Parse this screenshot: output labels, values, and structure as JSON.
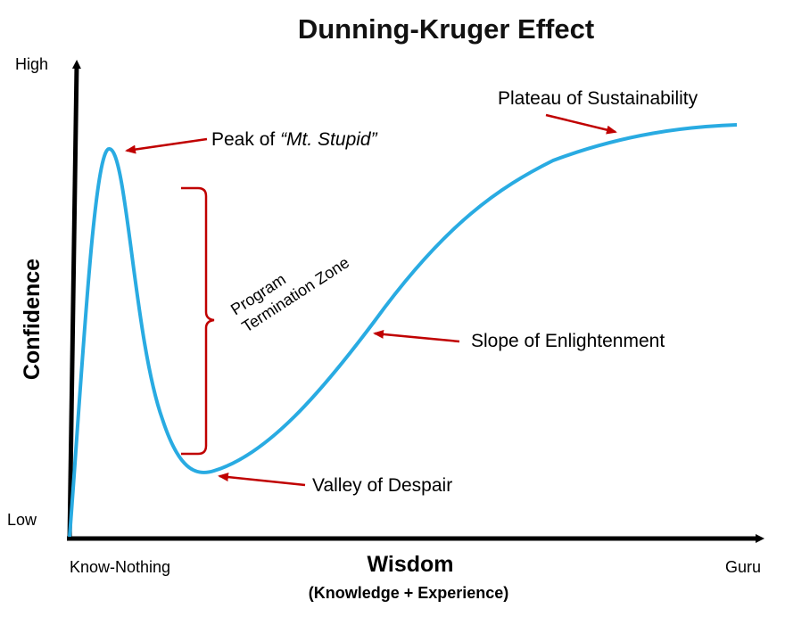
{
  "title": "Dunning-Kruger Effect",
  "axes": {
    "y_label": "Confidence",
    "y_high": "High",
    "y_low": "Low",
    "x_label": "Wisdom",
    "x_sublabel": "(Knowledge + Experience)",
    "x_start": "Know-Nothing",
    "x_end": "Guru"
  },
  "annotations": {
    "peak_prefix": "Peak of ",
    "peak_emph": "“Mt. Stupid”",
    "plateau": "Plateau of Sustainability",
    "slope": "Slope of Enlightenment",
    "valley": "Valley of Despair",
    "zone_line1": "Program",
    "zone_line2": "Termination Zone"
  },
  "colors": {
    "curve": "#29abe2",
    "arrow": "#c00000",
    "axis": "#000000",
    "text": "#111111"
  }
}
